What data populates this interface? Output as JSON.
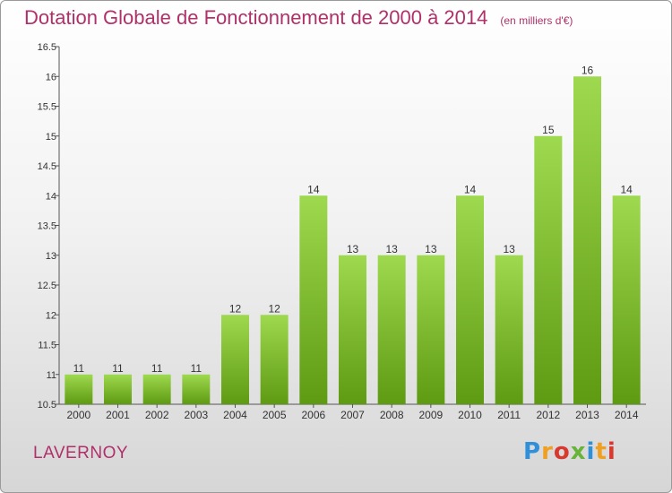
{
  "header": {
    "title": "Dotation Globale de Fonctionnement de 2000 à 2014",
    "unit": "(en milliers d'€)"
  },
  "commune": "LAVERNOY",
  "logo": {
    "text": "Proxiti",
    "letter_colors": [
      "#2f8fd8",
      "#f0a020",
      "#d8392f",
      "#68b33a",
      "#2f8fd8",
      "#f0a020",
      "#d8392f"
    ]
  },
  "colors": {
    "bar_top": "#9ed94f",
    "bar_bottom": "#5e9a12",
    "label": "#333333"
  },
  "chart_data": {
    "type": "bar",
    "title": "Dotation Globale de Fonctionnement de 2000 à 2014",
    "categories": [
      "2000",
      "2001",
      "2002",
      "2003",
      "2004",
      "2005",
      "2006",
      "2007",
      "2008",
      "2009",
      "2010",
      "2011",
      "2012",
      "2013",
      "2014"
    ],
    "values": [
      11,
      11,
      11,
      11,
      12,
      12,
      14,
      13,
      13,
      13,
      14,
      13,
      15,
      16,
      14
    ],
    "data_labels": [
      "11",
      "11",
      "11",
      "11",
      "12",
      "12",
      "14",
      "13",
      "13",
      "13",
      "14",
      "13",
      "15",
      "16",
      "14"
    ],
    "ylim": [
      10.5,
      16.5
    ],
    "yticks": [
      10.5,
      11,
      11.5,
      12,
      12.5,
      13,
      13.5,
      14,
      14.5,
      15,
      15.5,
      16,
      16.5
    ],
    "ytick_labels": [
      "10.5",
      "11",
      "11.5",
      "12",
      "12.5",
      "13",
      "13.5",
      "14",
      "14.5",
      "15",
      "15.5",
      "16",
      "16.5"
    ],
    "grid": false
  }
}
